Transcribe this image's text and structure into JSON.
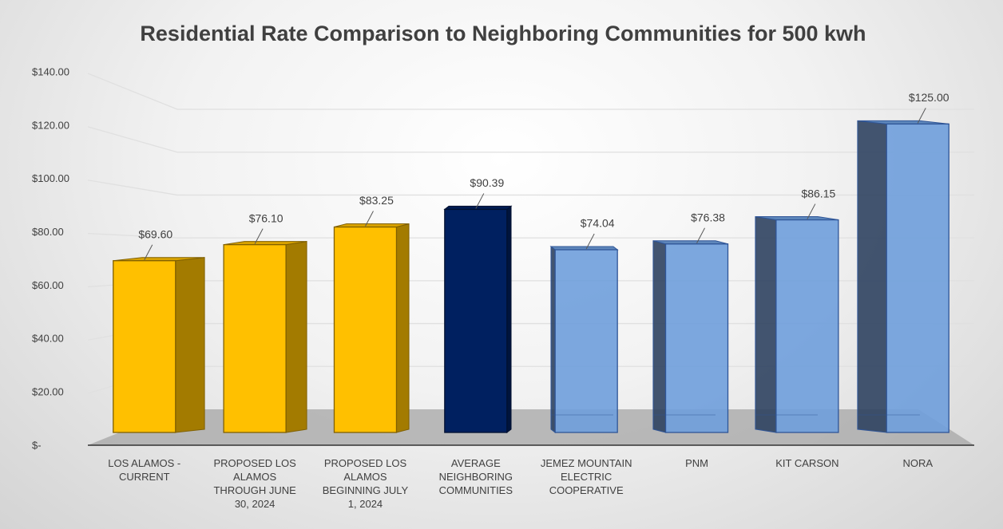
{
  "chart_data": {
    "type": "bar3d",
    "title": "Residential Rate Comparison to Neighboring Communities for 500 kwh",
    "categories": [
      "LOS ALAMOS - CURRENT",
      "PROPOSED LOS ALAMOS THROUGH JUNE 30, 2024",
      "PROPOSED LOS ALAMOS BEGINNING JULY 1, 2024",
      "AVERAGE NEIGHBORING COMMUNITIES",
      "JEMEZ MOUNTAIN ELECTRIC COOPERATIVE",
      "PNM",
      "KIT CARSON",
      "NORA"
    ],
    "values": [
      69.6,
      76.1,
      83.25,
      90.39,
      74.04,
      76.38,
      86.15,
      125
    ],
    "value_labels": [
      "$69.60",
      "$76.10",
      "$83.25",
      "$90.39",
      "$74.04",
      "$76.38",
      "$86.15",
      "$125.00"
    ],
    "colors": [
      "#ffc000",
      "#ffc000",
      "#ffc000",
      "#002060",
      "#6f9fdc",
      "#6f9fdc",
      "#6f9fdc",
      "#6f9fdc"
    ],
    "ylim": [
      0,
      140
    ],
    "yticks": [
      {
        "value": 0,
        "label": "$-"
      },
      {
        "value": 20,
        "label": "$20.00"
      },
      {
        "value": 40,
        "label": "$40.00"
      },
      {
        "value": 60,
        "label": "$60.00"
      },
      {
        "value": 80,
        "label": "$80.00"
      },
      {
        "value": 100,
        "label": "$100.00"
      },
      {
        "value": 120,
        "label": "$120.00"
      },
      {
        "value": 140,
        "label": "$140.00"
      }
    ],
    "grid": true
  }
}
